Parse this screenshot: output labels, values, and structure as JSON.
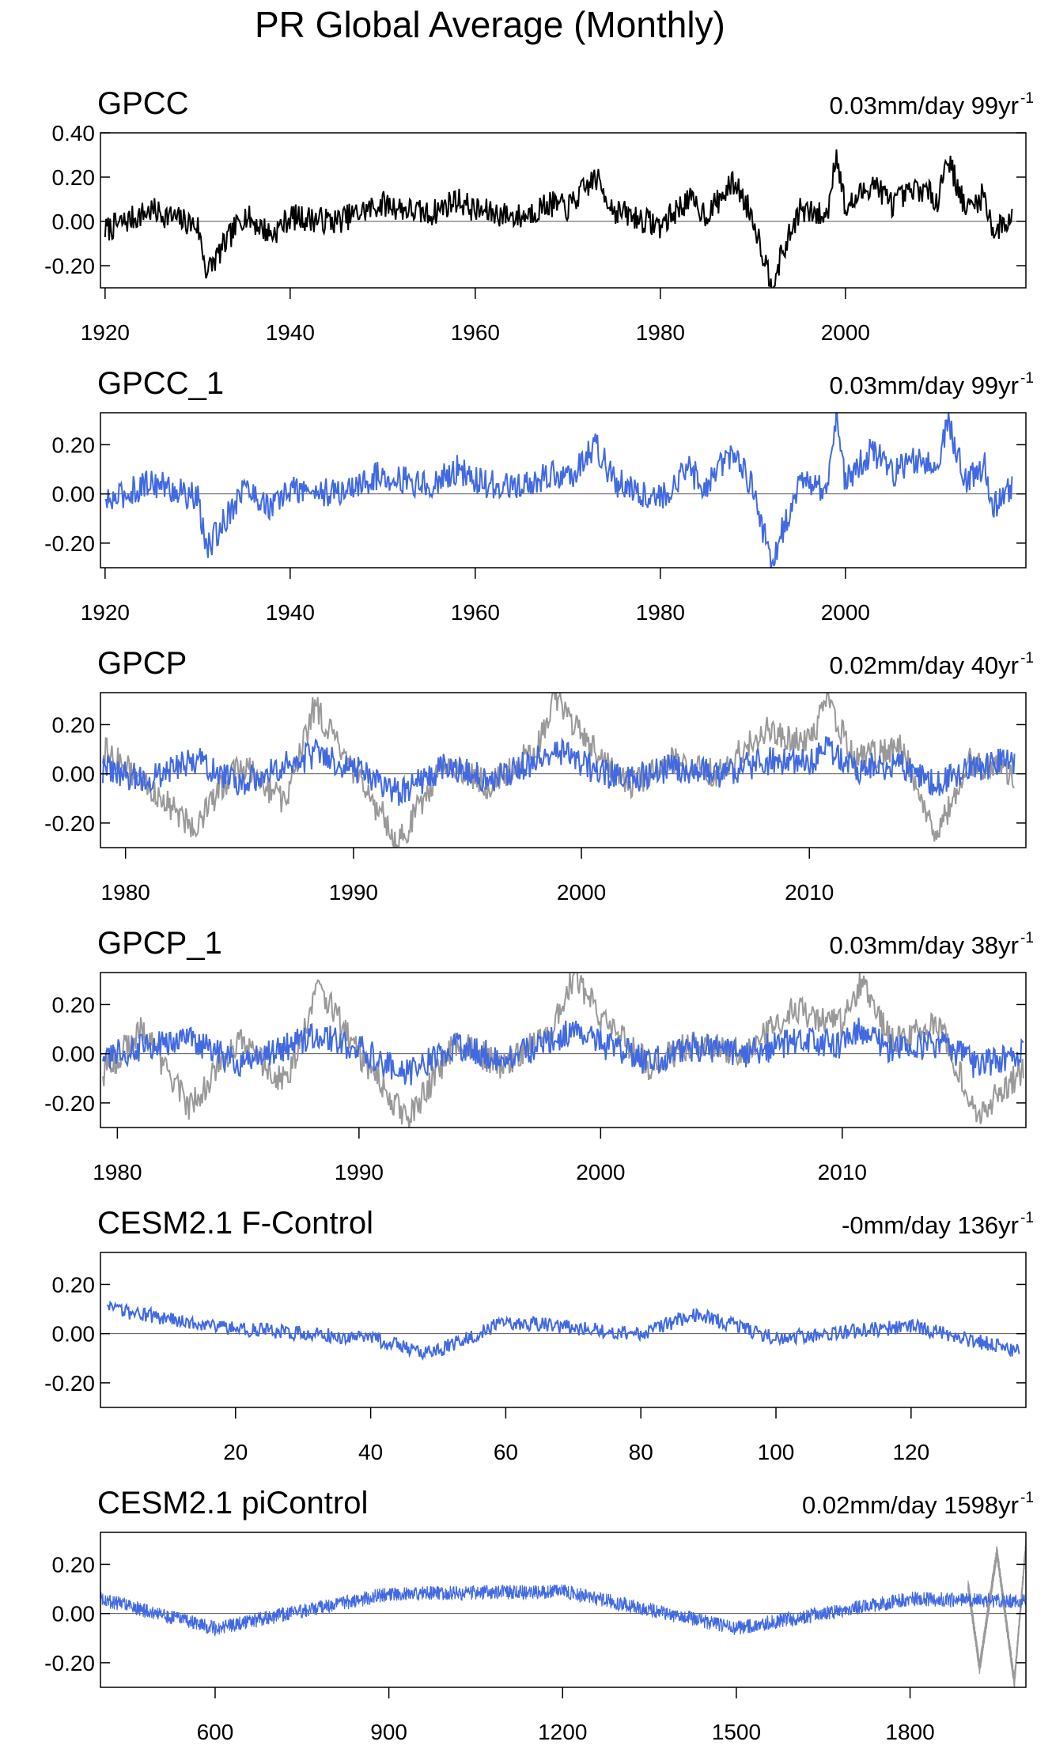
{
  "figure": {
    "title": "PR Global Average (Monthly)"
  },
  "chart_data": [
    {
      "type": "line",
      "panel_title": "GPCC",
      "trend_value": "0.03mm/day 99yr",
      "trend_exp": "-1",
      "xlim": [
        1919.5,
        2019.5
      ],
      "ylim": [
        -0.3,
        0.4
      ],
      "xticks": [
        1920,
        1940,
        1960,
        1980,
        2000
      ],
      "yticks": [
        -0.2,
        0.0,
        0.2,
        0.4
      ],
      "series": [
        {
          "color": "#000000",
          "x": [
            1920,
            1925,
            1930,
            1931,
            1935,
            1938,
            1940,
            1945,
            1950,
            1955,
            1958,
            1960,
            1965,
            1968,
            1970,
            1973,
            1975,
            1980,
            1983,
            1985,
            1988,
            1990,
            1992,
            1995,
            1998,
            1999,
            2000,
            2003,
            2005,
            2008,
            2010,
            2011,
            2013,
            2015,
            2016,
            2018
          ],
          "y": [
            -0.04,
            0.05,
            -0.02,
            -0.23,
            0.03,
            -0.06,
            0.02,
            0.0,
            0.08,
            0.03,
            0.1,
            0.05,
            0.02,
            0.08,
            0.06,
            0.2,
            0.05,
            -0.02,
            0.1,
            0.03,
            0.18,
            0.02,
            -0.28,
            0.05,
            0.02,
            0.32,
            0.05,
            0.18,
            0.08,
            0.15,
            0.1,
            0.3,
            0.05,
            0.12,
            -0.05,
            0.02
          ]
        }
      ]
    },
    {
      "type": "line",
      "panel_title": "GPCC_1",
      "trend_value": "0.03mm/day 99yr",
      "trend_exp": "-1",
      "xlim": [
        1919.5,
        2019.5
      ],
      "ylim": [
        -0.3,
        0.33
      ],
      "xticks": [
        1920,
        1940,
        1960,
        1980,
        2000
      ],
      "yticks": [
        -0.2,
        0.0,
        0.2
      ],
      "series": [
        {
          "color": "#4169e1",
          "x": [
            1920,
            1925,
            1930,
            1931,
            1935,
            1938,
            1940,
            1945,
            1950,
            1955,
            1958,
            1960,
            1965,
            1968,
            1970,
            1973,
            1975,
            1980,
            1983,
            1985,
            1988,
            1990,
            1992,
            1995,
            1998,
            1999,
            2000,
            2003,
            2005,
            2008,
            2010,
            2011,
            2013,
            2015,
            2016,
            2018
          ],
          "y": [
            -0.04,
            0.05,
            -0.02,
            -0.23,
            0.03,
            -0.06,
            0.02,
            0.0,
            0.08,
            0.03,
            0.1,
            0.05,
            0.02,
            0.08,
            0.06,
            0.2,
            0.05,
            -0.02,
            0.1,
            0.03,
            0.18,
            0.02,
            -0.28,
            0.05,
            0.02,
            0.32,
            0.05,
            0.18,
            0.08,
            0.15,
            0.1,
            0.3,
            0.05,
            0.12,
            -0.05,
            0.02
          ]
        }
      ]
    },
    {
      "type": "line",
      "panel_title": "GPCP",
      "trend_value": "0.02mm/day 40yr",
      "trend_exp": "-1",
      "xlim": [
        1978.9,
        2019.5
      ],
      "ylim": [
        -0.3,
        0.33
      ],
      "xticks": [
        1980,
        1990,
        2000,
        2010
      ],
      "yticks": [
        -0.2,
        0.0,
        0.2
      ],
      "series": [
        {
          "color": "#999999",
          "x": [
            1979,
            1981,
            1983,
            1985,
            1987,
            1988.3,
            1990,
            1991.5,
            1992,
            1994,
            1996,
            1998,
            1998.9,
            2000,
            2002,
            2004,
            2006,
            2008,
            2010,
            2010.8,
            2012,
            2014,
            2015.6,
            2017,
            2019
          ],
          "y": [
            0.1,
            -0.05,
            -0.22,
            0.05,
            -0.12,
            0.28,
            0.0,
            -0.2,
            -0.28,
            0.05,
            -0.05,
            0.1,
            0.32,
            0.15,
            -0.05,
            0.05,
            0.0,
            0.18,
            0.12,
            0.3,
            0.05,
            0.12,
            -0.25,
            0.05,
            0.0
          ]
        },
        {
          "color": "#4169e1",
          "x": [
            1979,
            1981,
            1983,
            1985,
            1987,
            1988.3,
            1990,
            1991.5,
            1992,
            1994,
            1996,
            1998,
            1998.9,
            2000,
            2002,
            2004,
            2006,
            2008,
            2010,
            2010.8,
            2012,
            2014,
            2015.6,
            2017,
            2019
          ],
          "y": [
            0.02,
            -0.03,
            0.06,
            -0.04,
            0.03,
            0.08,
            0.02,
            -0.06,
            -0.08,
            0.03,
            -0.02,
            0.05,
            0.1,
            0.04,
            -0.03,
            0.03,
            0.0,
            0.05,
            0.04,
            0.1,
            0.02,
            0.04,
            -0.05,
            0.02,
            0.06
          ]
        }
      ]
    },
    {
      "type": "line",
      "panel_title": "GPCP_1",
      "trend_value": "0.03mm/day 38yr",
      "trend_exp": "-1",
      "xlim": [
        1979.3,
        2017.6
      ],
      "ylim": [
        -0.3,
        0.33
      ],
      "xticks": [
        1980,
        1990,
        2000,
        2010
      ],
      "yticks": [
        -0.2,
        0.0,
        0.2
      ],
      "series": [
        {
          "color": "#999999",
          "x": [
            1979.4,
            1981,
            1983,
            1985,
            1987,
            1988.3,
            1990,
            1991.5,
            1992,
            1994,
            1996,
            1998,
            1998.9,
            2000,
            2002,
            2004,
            2006,
            2008,
            2010,
            2010.8,
            2012,
            2014,
            2015.6,
            2017.5
          ],
          "y": [
            -0.08,
            0.1,
            -0.22,
            0.05,
            -0.12,
            0.28,
            0.0,
            -0.2,
            -0.28,
            0.05,
            -0.05,
            0.1,
            0.32,
            0.15,
            -0.05,
            0.05,
            0.0,
            0.18,
            0.12,
            0.3,
            0.05,
            0.12,
            -0.25,
            -0.06
          ]
        },
        {
          "color": "#4169e1",
          "x": [
            1979.4,
            1981,
            1983,
            1985,
            1987,
            1988.3,
            1990,
            1991.5,
            1992,
            1994,
            1996,
            1998,
            1998.9,
            2000,
            2002,
            2004,
            2006,
            2008,
            2010,
            2010.8,
            2012,
            2014,
            2015.6,
            2017.5
          ],
          "y": [
            -0.02,
            0.03,
            0.06,
            -0.04,
            0.03,
            0.08,
            0.02,
            -0.06,
            -0.08,
            0.03,
            -0.02,
            0.05,
            0.1,
            0.04,
            -0.03,
            0.03,
            0.0,
            0.05,
            0.04,
            0.1,
            0.02,
            0.04,
            -0.05,
            0.01
          ]
        }
      ]
    },
    {
      "type": "line",
      "panel_title": "CESM2.1 F-Control",
      "trend_value": "-0mm/day 136yr",
      "trend_exp": "-1",
      "xlim": [
        0,
        137
      ],
      "ylim": [
        -0.3,
        0.33
      ],
      "xticks": [
        20,
        40,
        60,
        80,
        100,
        120
      ],
      "yticks": [
        -0.2,
        0.0,
        0.2
      ],
      "series": [
        {
          "color": "#4169e1",
          "x": [
            1,
            20,
            40,
            49,
            60,
            80,
            88,
            100,
            120,
            136
          ],
          "y": [
            0.1,
            0.02,
            -0.02,
            -0.08,
            0.05,
            0.0,
            0.08,
            -0.02,
            0.03,
            -0.07
          ]
        }
      ]
    },
    {
      "type": "line",
      "panel_title": "CESM2.1 piControl",
      "trend_value": "0.02mm/day 1598yr",
      "trend_exp": "-1",
      "xlim": [
        402,
        2000
      ],
      "ylim": [
        -0.3,
        0.33
      ],
      "xticks": [
        600,
        900,
        1200,
        1500,
        1800
      ],
      "yticks": [
        -0.2,
        0.0,
        0.2
      ],
      "series": [
        {
          "color": "#999999",
          "x": [
            1900,
            1920,
            1950,
            1980,
            2000
          ],
          "y": [
            0.12,
            -0.22,
            0.25,
            -0.28,
            0.28
          ]
        },
        {
          "color": "#4169e1",
          "x": [
            402,
            600,
            900,
            1200,
            1500,
            1800,
            2000
          ],
          "y": [
            0.06,
            -0.06,
            0.08,
            0.09,
            -0.06,
            0.06,
            0.05
          ]
        }
      ]
    }
  ]
}
